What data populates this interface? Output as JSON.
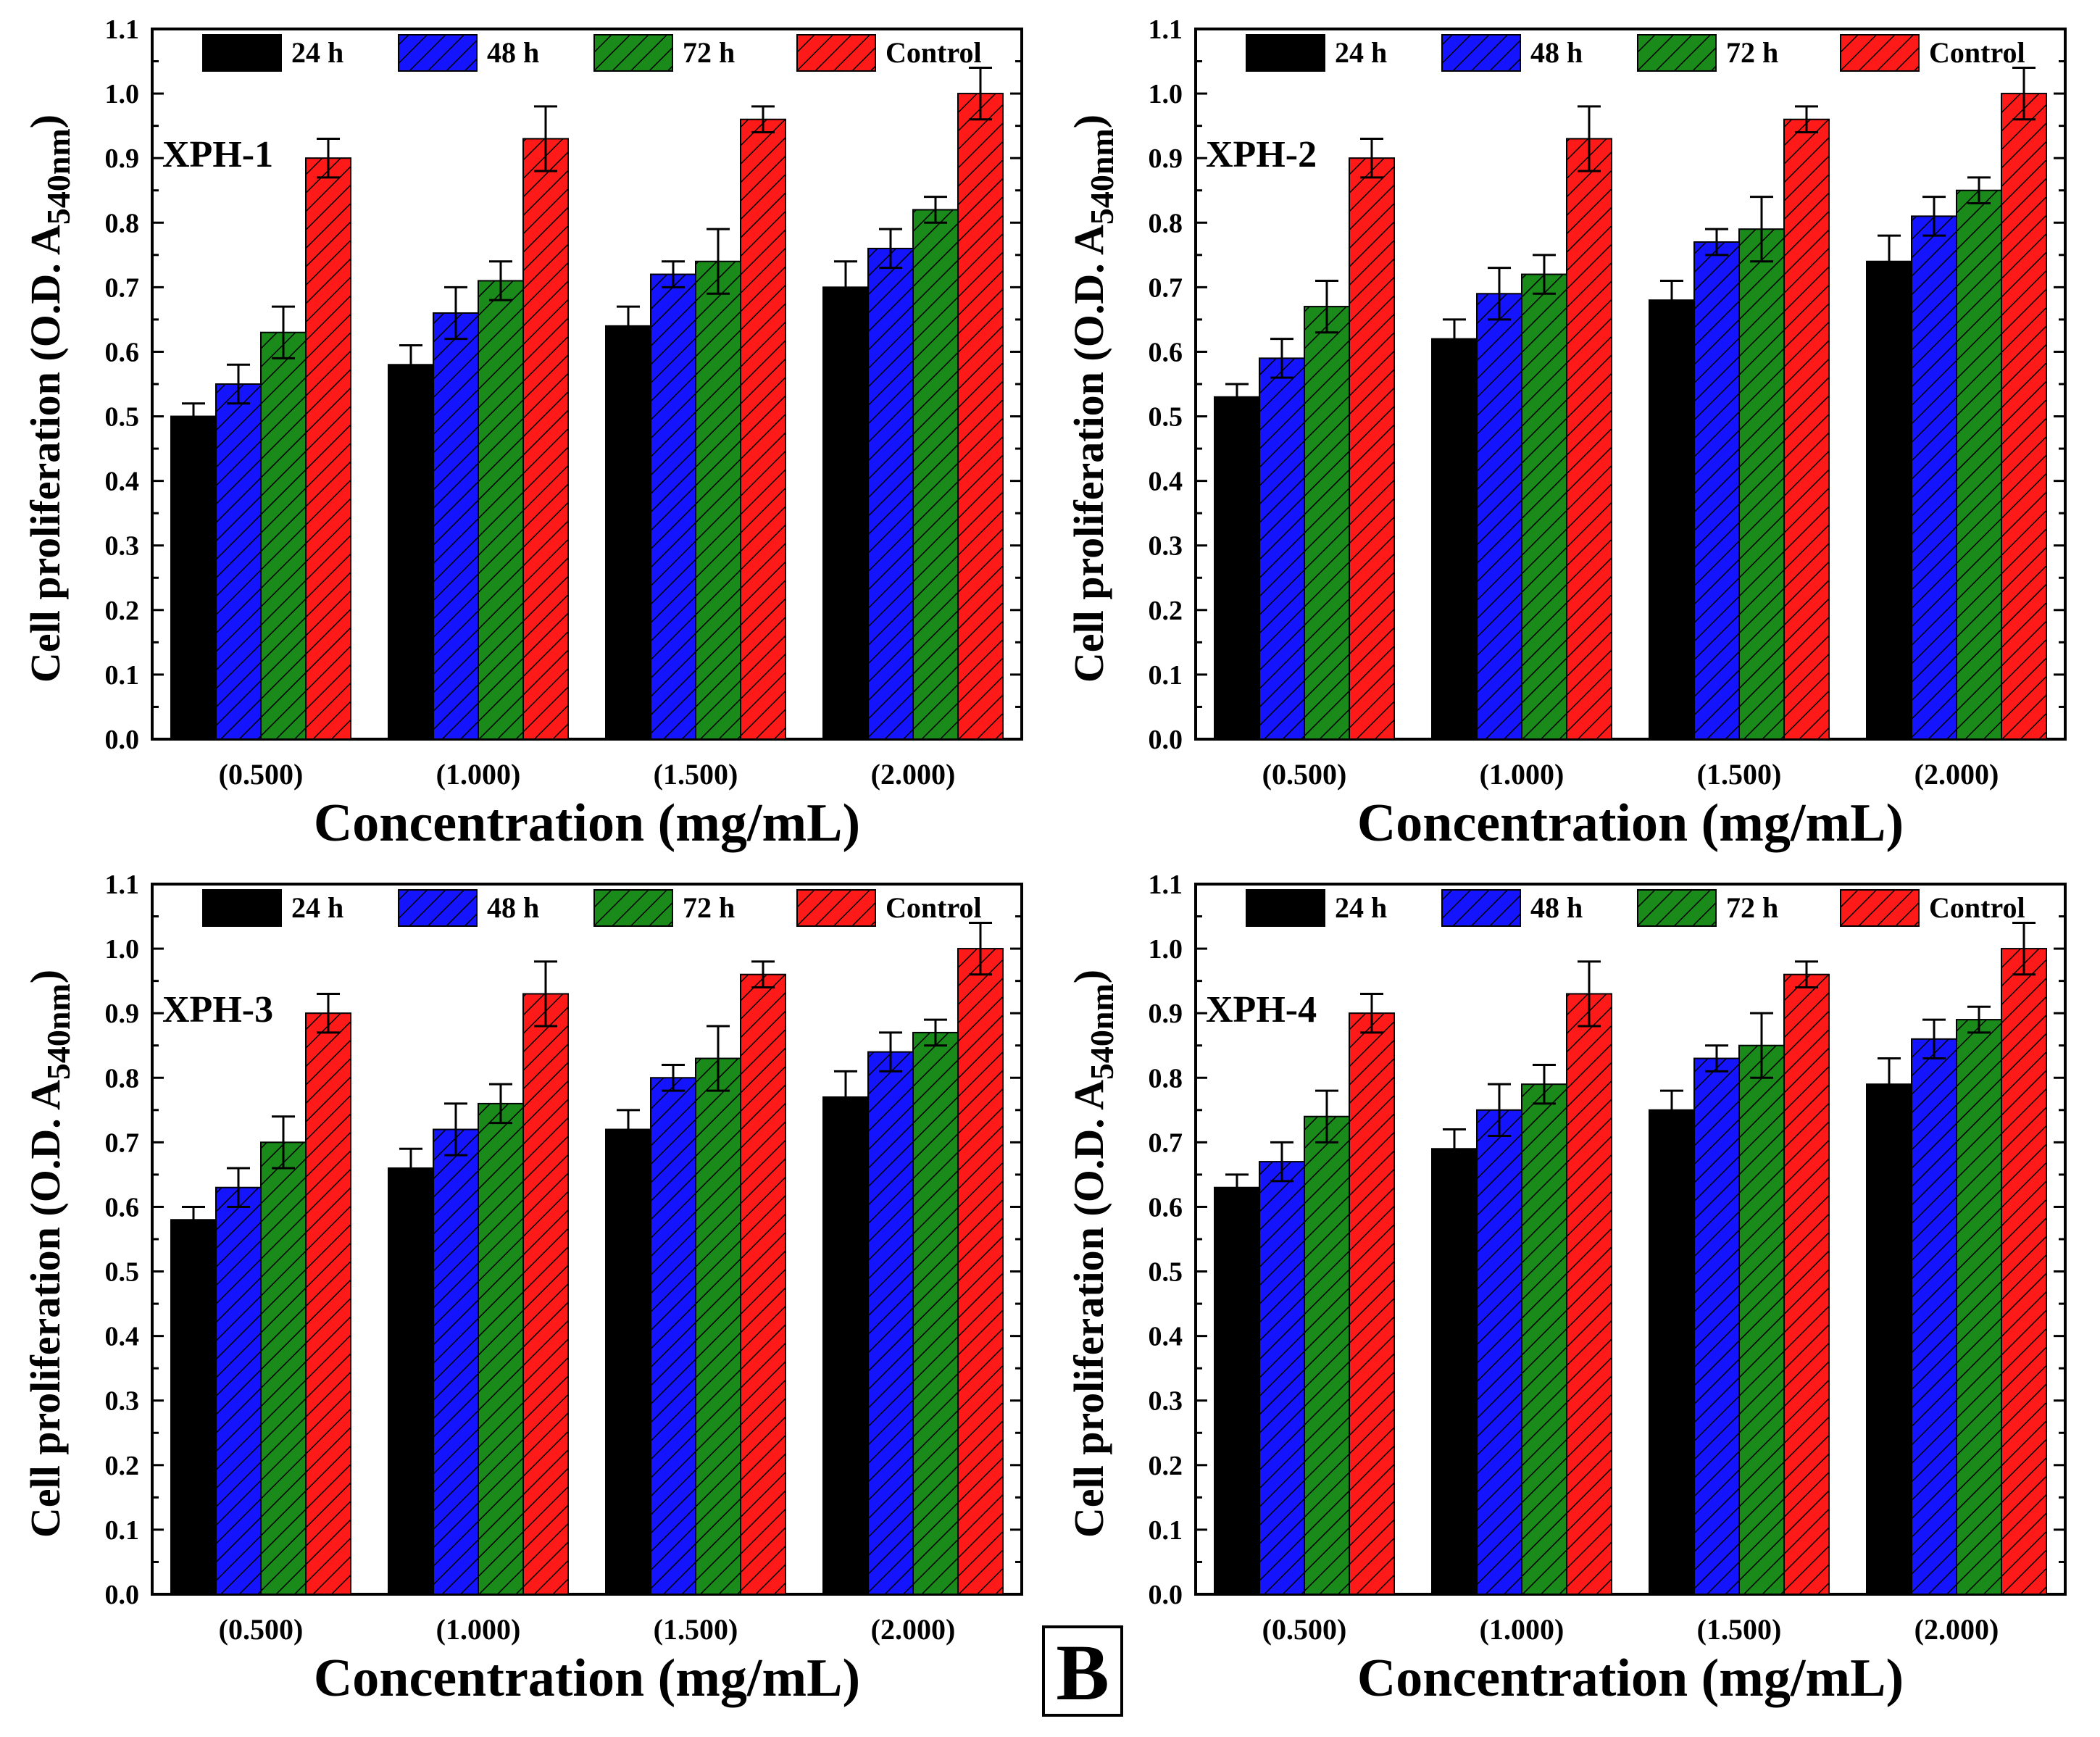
{
  "figure_label": "B",
  "colors": {
    "24 h": "#000000",
    "48 h": "#1414ff",
    "72 h": "#1a8a1a",
    "Control": "#ff1a1a"
  },
  "chart_data": [
    {
      "type": "bar",
      "panel_label": "XPH-1",
      "categories": [
        "(0.500)",
        "(1.000)",
        "(1.500)",
        "(2.000)"
      ],
      "series": [
        {
          "name": "24 h",
          "values": [
            0.5,
            0.58,
            0.64,
            0.7
          ],
          "errors": [
            0.02,
            0.03,
            0.03,
            0.04
          ]
        },
        {
          "name": "48 h",
          "values": [
            0.55,
            0.66,
            0.72,
            0.76
          ],
          "errors": [
            0.03,
            0.04,
            0.02,
            0.03
          ]
        },
        {
          "name": "72 h",
          "values": [
            0.63,
            0.71,
            0.74,
            0.82
          ],
          "errors": [
            0.04,
            0.03,
            0.05,
            0.02
          ]
        },
        {
          "name": "Control",
          "values": [
            0.9,
            0.93,
            0.96,
            1.0
          ],
          "errors": [
            0.03,
            0.05,
            0.02,
            0.04
          ]
        }
      ],
      "xlabel": "Concentration (mg/mL)",
      "ylabel": "Cell proliferation (O.D. A540nm)",
      "ylabel_main": "Cell proliferation (O.D. A",
      "ylabel_sub": "540nm",
      "ylabel_close": ")",
      "ylim": [
        0,
        1.1
      ],
      "yticks": [
        "0.0",
        "0.1",
        "0.2",
        "0.3",
        "0.4",
        "0.5",
        "0.6",
        "0.7",
        "0.8",
        "0.9",
        "1.0",
        "1.1"
      ],
      "legend": [
        "24 h",
        "48 h",
        "72 h",
        "Control"
      ]
    },
    {
      "type": "bar",
      "panel_label": "XPH-2",
      "categories": [
        "(0.500)",
        "(1.000)",
        "(1.500)",
        "(2.000)"
      ],
      "series": [
        {
          "name": "24 h",
          "values": [
            0.53,
            0.62,
            0.68,
            0.74
          ],
          "errors": [
            0.02,
            0.03,
            0.03,
            0.04
          ]
        },
        {
          "name": "48 h",
          "values": [
            0.59,
            0.69,
            0.77,
            0.81
          ],
          "errors": [
            0.03,
            0.04,
            0.02,
            0.03
          ]
        },
        {
          "name": "72 h",
          "values": [
            0.67,
            0.72,
            0.79,
            0.85
          ],
          "errors": [
            0.04,
            0.03,
            0.05,
            0.02
          ]
        },
        {
          "name": "Control",
          "values": [
            0.9,
            0.93,
            0.96,
            1.0
          ],
          "errors": [
            0.03,
            0.05,
            0.02,
            0.04
          ]
        }
      ],
      "xlabel": "Concentration (mg/mL)",
      "ylabel": "Cell proliferation (O.D. A540nm)",
      "ylabel_main": "Cell proliferation (O.D. A",
      "ylabel_sub": "540nm",
      "ylabel_close": ")",
      "ylim": [
        0,
        1.1
      ],
      "yticks": [
        "0.0",
        "0.1",
        "0.2",
        "0.3",
        "0.4",
        "0.5",
        "0.6",
        "0.7",
        "0.8",
        "0.9",
        "1.0",
        "1.1"
      ],
      "legend": [
        "24 h",
        "48 h",
        "72 h",
        "Control"
      ]
    },
    {
      "type": "bar",
      "panel_label": "XPH-3",
      "categories": [
        "(0.500)",
        "(1.000)",
        "(1.500)",
        "(2.000)"
      ],
      "series": [
        {
          "name": "24 h",
          "values": [
            0.58,
            0.66,
            0.72,
            0.77
          ],
          "errors": [
            0.02,
            0.03,
            0.03,
            0.04
          ]
        },
        {
          "name": "48 h",
          "values": [
            0.63,
            0.72,
            0.8,
            0.84
          ],
          "errors": [
            0.03,
            0.04,
            0.02,
            0.03
          ]
        },
        {
          "name": "72 h",
          "values": [
            0.7,
            0.76,
            0.83,
            0.87
          ],
          "errors": [
            0.04,
            0.03,
            0.05,
            0.02
          ]
        },
        {
          "name": "Control",
          "values": [
            0.9,
            0.93,
            0.96,
            1.0
          ],
          "errors": [
            0.03,
            0.05,
            0.02,
            0.04
          ]
        }
      ],
      "xlabel": "Concentration (mg/mL)",
      "ylabel": "Cell proliferation (O.D. A540nm)",
      "ylabel_main": "Cell proliferation (O.D. A",
      "ylabel_sub": "540nm",
      "ylabel_close": ")",
      "ylim": [
        0,
        1.1
      ],
      "yticks": [
        "0.0",
        "0.1",
        "0.2",
        "0.3",
        "0.4",
        "0.5",
        "0.6",
        "0.7",
        "0.8",
        "0.9",
        "1.0",
        "1.1"
      ],
      "legend": [
        "24 h",
        "48 h",
        "72 h",
        "Control"
      ]
    },
    {
      "type": "bar",
      "panel_label": "XPH-4",
      "categories": [
        "(0.500)",
        "(1.000)",
        "(1.500)",
        "(2.000)"
      ],
      "series": [
        {
          "name": "24 h",
          "values": [
            0.63,
            0.69,
            0.75,
            0.79
          ],
          "errors": [
            0.02,
            0.03,
            0.03,
            0.04
          ]
        },
        {
          "name": "48 h",
          "values": [
            0.67,
            0.75,
            0.83,
            0.86
          ],
          "errors": [
            0.03,
            0.04,
            0.02,
            0.03
          ]
        },
        {
          "name": "72 h",
          "values": [
            0.74,
            0.79,
            0.85,
            0.89
          ],
          "errors": [
            0.04,
            0.03,
            0.05,
            0.02
          ]
        },
        {
          "name": "Control",
          "values": [
            0.9,
            0.93,
            0.96,
            1.0
          ],
          "errors": [
            0.03,
            0.05,
            0.02,
            0.04
          ]
        }
      ],
      "xlabel": "Concentration (mg/mL)",
      "ylabel": "Cell proliferation (O.D. A540nm)",
      "ylabel_main": "Cell proliferation (O.D. A",
      "ylabel_sub": "540nm",
      "ylabel_close": ")",
      "ylim": [
        0,
        1.1
      ],
      "yticks": [
        "0.0",
        "0.1",
        "0.2",
        "0.3",
        "0.4",
        "0.5",
        "0.6",
        "0.7",
        "0.8",
        "0.9",
        "1.0",
        "1.1"
      ],
      "legend": [
        "24 h",
        "48 h",
        "72 h",
        "Control"
      ]
    }
  ]
}
